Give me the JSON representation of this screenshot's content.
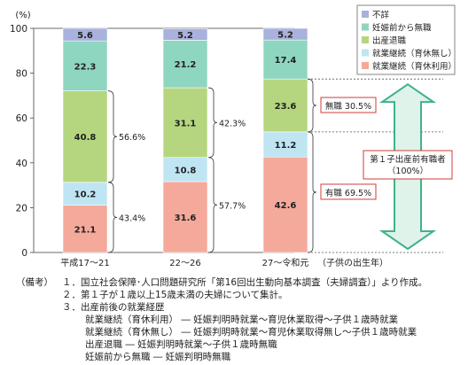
{
  "chart_data": {
    "type": "bar",
    "stacked": true,
    "percent": true,
    "y_unit_label": "(%)",
    "ylim": [
      0,
      100
    ],
    "yticks": [
      0,
      20,
      40,
      60,
      80,
      100
    ],
    "grid": false,
    "categories": [
      "平成17～21",
      "22～26",
      "27～令和元"
    ],
    "x_axis_note": "（子供の出生年）",
    "series": [
      {
        "name": "就業継続（育休利用）",
        "color": "#f4a99a",
        "values": [
          21.1,
          31.6,
          42.6
        ]
      },
      {
        "name": "就業継続（育休無し）",
        "color": "#bfe5f3",
        "values": [
          10.2,
          10.8,
          11.2
        ]
      },
      {
        "name": "出産退職",
        "color": "#b5d67e",
        "values": [
          40.8,
          31.1,
          23.6
        ]
      },
      {
        "name": "妊娠前から無職",
        "color": "#8fd6c0",
        "values": [
          22.3,
          21.2,
          17.4
        ]
      },
      {
        "name": "不詳",
        "color": "#a9b1dd",
        "values": [
          5.6,
          5.2,
          5.2
        ]
      }
    ],
    "legend_position": "top-right",
    "brace_annotations": [
      {
        "category": 0,
        "series_range": [
          2,
          2
        ],
        "label": "56.6%"
      },
      {
        "category": 0,
        "series_range": [
          0,
          1
        ],
        "label": "43.4%"
      },
      {
        "category": 1,
        "series_range": [
          2,
          2
        ],
        "label": "42.3%"
      },
      {
        "category": 1,
        "series_range": [
          0,
          1
        ],
        "label": "57.7%"
      }
    ],
    "side_annotations": {
      "mushoku": "無職 30.5%",
      "yushoku": "有職 69.5%",
      "total": [
        "第１子出産前有職者",
        "（100%）"
      ]
    }
  },
  "notes": {
    "prefix": "（備考）",
    "items": [
      "１．国立社会保障･人口問題研究所「第16回出生動向基本調査（夫婦調査）」より作成。",
      "２．第１子が１歳以上15歳未満の夫婦について集計。",
      "３．出産前後の就業経歴"
    ],
    "definitions": [
      "就業継続（育休利用） ― 妊娠判明時就業～育児休業取得～子供１歳時就業",
      "就業継続（育休無し） ― 妊娠判明時就業～育児休業取得無し～子供１歳時就業",
      "出産退職 ― 妊娠判明時就業～子供１歳時無職",
      "妊娠前から無職 ― 妊娠判明時無職"
    ]
  }
}
